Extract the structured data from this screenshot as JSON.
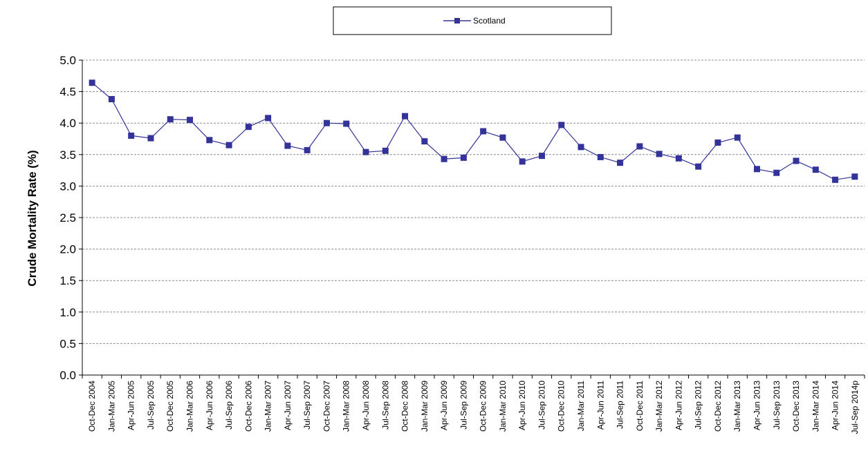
{
  "chart_data": {
    "type": "line",
    "ylabel": "Crude Mortality Rate (%)",
    "ylim": [
      0,
      5
    ],
    "yticks": [
      "0.0",
      "0.5",
      "1.0",
      "1.5",
      "2.0",
      "2.5",
      "3.0",
      "3.5",
      "4.0",
      "4.5",
      "5.0"
    ],
    "grid": "horizontal-dashed",
    "legend_position": "top",
    "categories": [
      "Oct-Dec 2004",
      "Jan-Mar 2005",
      "Apr-Jun 2005",
      "Jul-Sep 2005",
      "Oct-Dec 2005",
      "Jan-Mar 2006",
      "Apr-Jun 2006",
      "Jul-Sep 2006",
      "Oct-Dec 2006",
      "Jan-Mar 2007",
      "Apr-Jun 2007",
      "Jul-Sep 2007",
      "Oct-Dec 2007",
      "Jan-Mar 2008",
      "Apr-Jun 2008",
      "Jul-Sep 2008",
      "Oct-Dec 2008",
      "Jan-Mar 2009",
      "Apr-Jun 2009",
      "Jul-Sep 2009",
      "Oct-Dec 2009",
      "Jan-Mar 2010",
      "Apr-Jun 2010",
      "Jul-Sep 2010",
      "Oct-Dec 2010",
      "Jan-Mar 2011",
      "Apr-Jun 2011",
      "Jul-Sep 2011",
      "Oct-Dec 2011",
      "Jan-Mar 2012",
      "Apr-Jun 2012",
      "Jul-Sep 2012",
      "Oct-Dec 2012",
      "Jan-Mar 2013",
      "Apr-Jun 2013",
      "Jul-Sep 2013",
      "Oct-Dec 2013",
      "Jan-Mar 2014",
      "Apr-Jun 2014",
      "Jul-Sep 2014p"
    ],
    "series": [
      {
        "name": "Scotland",
        "color": "#333399",
        "marker": "square",
        "values": [
          4.64,
          4.38,
          3.8,
          3.76,
          4.06,
          4.05,
          3.73,
          3.65,
          3.94,
          4.08,
          3.64,
          3.57,
          4.0,
          3.99,
          3.54,
          3.56,
          4.11,
          3.71,
          3.43,
          3.45,
          3.87,
          3.77,
          3.39,
          3.48,
          3.97,
          3.62,
          3.46,
          3.37,
          3.63,
          3.51,
          3.44,
          3.31,
          3.69,
          3.77,
          3.27,
          3.21,
          3.4,
          3.26,
          3.1,
          3.15
        ]
      }
    ]
  }
}
